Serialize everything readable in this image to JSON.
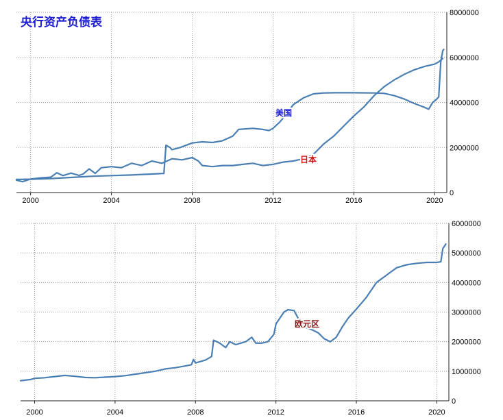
{
  "chart_data": [
    {
      "type": "line",
      "title": "央行资产负债表",
      "xlim": [
        1999.3,
        2020.6
      ],
      "ylim": [
        0,
        8000000
      ],
      "x_ticks": [
        "2000",
        "2004",
        "2008",
        "2012",
        "2016",
        "2020"
      ],
      "y_ticks": [
        "0",
        "2000000",
        "4000000",
        "6000000",
        "8000000"
      ],
      "series": [
        {
          "name": "美国",
          "label_color": "#1c1cd2",
          "points": [
            [
              1999.3,
              580000
            ],
            [
              2000.0,
              590000
            ],
            [
              2001.0,
              620000
            ],
            [
              2002.0,
              670000
            ],
            [
              2003.0,
              720000
            ],
            [
              2004.0,
              750000
            ],
            [
              2005.0,
              780000
            ],
            [
              2006.0,
              820000
            ],
            [
              2006.6,
              850000
            ],
            [
              2006.7,
              2100000
            ],
            [
              2006.9,
              2000000
            ],
            [
              2007.0,
              1900000
            ],
            [
              2007.4,
              2000000
            ],
            [
              2008.0,
              2200000
            ],
            [
              2008.5,
              2250000
            ],
            [
              2009.0,
              2220000
            ],
            [
              2009.5,
              2300000
            ],
            [
              2010.0,
              2500000
            ],
            [
              2010.3,
              2800000
            ],
            [
              2011.0,
              2850000
            ],
            [
              2011.5,
              2800000
            ],
            [
              2011.8,
              2750000
            ],
            [
              2012.0,
              2850000
            ],
            [
              2012.3,
              3100000
            ],
            [
              2012.6,
              3400000
            ],
            [
              2013.0,
              3900000
            ],
            [
              2013.5,
              4200000
            ],
            [
              2014.0,
              4380000
            ],
            [
              2014.5,
              4420000
            ],
            [
              2015.0,
              4430000
            ],
            [
              2016.0,
              4430000
            ],
            [
              2017.0,
              4420000
            ],
            [
              2017.5,
              4400000
            ],
            [
              2018.0,
              4300000
            ],
            [
              2018.5,
              4150000
            ],
            [
              2019.0,
              3950000
            ],
            [
              2019.5,
              3780000
            ],
            [
              2019.7,
              3700000
            ],
            [
              2019.9,
              4000000
            ],
            [
              2020.1,
              4150000
            ],
            [
              2020.2,
              4250000
            ],
            [
              2020.3,
              5800000
            ],
            [
              2020.4,
              6300000
            ],
            [
              2020.45,
              6350000
            ]
          ]
        },
        {
          "name": "日本",
          "label_color": "#cc1111",
          "points": [
            [
              1999.3,
              550000
            ],
            [
              1999.6,
              480000
            ],
            [
              2000.0,
              600000
            ],
            [
              2000.5,
              650000
            ],
            [
              2001.0,
              680000
            ],
            [
              2001.3,
              880000
            ],
            [
              2001.6,
              750000
            ],
            [
              2002.0,
              860000
            ],
            [
              2002.4,
              760000
            ],
            [
              2002.6,
              820000
            ],
            [
              2002.9,
              1050000
            ],
            [
              2003.2,
              850000
            ],
            [
              2003.5,
              1100000
            ],
            [
              2004.0,
              1150000
            ],
            [
              2004.5,
              1100000
            ],
            [
              2005.0,
              1300000
            ],
            [
              2005.5,
              1200000
            ],
            [
              2006.0,
              1400000
            ],
            [
              2006.5,
              1300000
            ],
            [
              2007.0,
              1500000
            ],
            [
              2007.5,
              1450000
            ],
            [
              2008.0,
              1550000
            ],
            [
              2008.3,
              1400000
            ],
            [
              2008.5,
              1200000
            ],
            [
              2009.0,
              1150000
            ],
            [
              2009.5,
              1200000
            ],
            [
              2010.0,
              1200000
            ],
            [
              2010.5,
              1250000
            ],
            [
              2011.0,
              1300000
            ],
            [
              2011.5,
              1200000
            ],
            [
              2012.0,
              1250000
            ],
            [
              2012.5,
              1350000
            ],
            [
              2013.0,
              1400000
            ],
            [
              2013.5,
              1500000
            ],
            [
              2014.0,
              1700000
            ],
            [
              2014.5,
              2150000
            ],
            [
              2015.0,
              2500000
            ],
            [
              2015.5,
              2950000
            ],
            [
              2016.0,
              3400000
            ],
            [
              2016.5,
              3800000
            ],
            [
              2017.0,
              4300000
            ],
            [
              2017.5,
              4700000
            ],
            [
              2018.0,
              5000000
            ],
            [
              2018.5,
              5250000
            ],
            [
              2019.0,
              5450000
            ],
            [
              2019.5,
              5600000
            ],
            [
              2020.0,
              5700000
            ],
            [
              2020.2,
              5800000
            ],
            [
              2020.4,
              5950000
            ]
          ]
        }
      ]
    },
    {
      "type": "line",
      "title": "",
      "xlim": [
        1999.3,
        2020.6
      ],
      "ylim": [
        0,
        6000000
      ],
      "x_ticks": [
        "2000",
        "2004",
        "2008",
        "2012",
        "2016",
        "2020"
      ],
      "y_ticks": [
        "0",
        "1000000",
        "2000000",
        "3000000",
        "4000000",
        "5000000",
        "6000000"
      ],
      "series": [
        {
          "name": "欧元区",
          "label_color": "#8b1414",
          "points": [
            [
              1999.3,
              680000
            ],
            [
              1999.8,
              720000
            ],
            [
              2000.0,
              760000
            ],
            [
              2000.5,
              780000
            ],
            [
              2001.0,
              820000
            ],
            [
              2001.5,
              860000
            ],
            [
              2002.0,
              830000
            ],
            [
              2002.5,
              790000
            ],
            [
              2003.0,
              780000
            ],
            [
              2003.5,
              800000
            ],
            [
              2004.0,
              820000
            ],
            [
              2004.5,
              850000
            ],
            [
              2005.0,
              900000
            ],
            [
              2005.5,
              950000
            ],
            [
              2006.0,
              1000000
            ],
            [
              2006.5,
              1080000
            ],
            [
              2007.0,
              1120000
            ],
            [
              2007.5,
              1180000
            ],
            [
              2007.8,
              1220000
            ],
            [
              2007.9,
              1400000
            ],
            [
              2008.0,
              1280000
            ],
            [
              2008.5,
              1380000
            ],
            [
              2008.8,
              1500000
            ],
            [
              2008.9,
              2050000
            ],
            [
              2009.2,
              1950000
            ],
            [
              2009.5,
              1800000
            ],
            [
              2009.7,
              2000000
            ],
            [
              2010.0,
              1900000
            ],
            [
              2010.5,
              2000000
            ],
            [
              2010.8,
              2150000
            ],
            [
              2011.0,
              1950000
            ],
            [
              2011.3,
              1950000
            ],
            [
              2011.6,
              2000000
            ],
            [
              2011.9,
              2250000
            ],
            [
              2012.0,
              2600000
            ],
            [
              2012.2,
              2800000
            ],
            [
              2012.4,
              3000000
            ],
            [
              2012.6,
              3080000
            ],
            [
              2012.9,
              3050000
            ],
            [
              2013.1,
              2800000
            ],
            [
              2013.4,
              2500000
            ],
            [
              2013.8,
              2400000
            ],
            [
              2014.1,
              2300000
            ],
            [
              2014.4,
              2100000
            ],
            [
              2014.7,
              2000000
            ],
            [
              2015.0,
              2150000
            ],
            [
              2015.3,
              2500000
            ],
            [
              2015.6,
              2800000
            ],
            [
              2016.0,
              3100000
            ],
            [
              2016.5,
              3500000
            ],
            [
              2017.0,
              4000000
            ],
            [
              2017.3,
              4150000
            ],
            [
              2017.7,
              4350000
            ],
            [
              2018.0,
              4500000
            ],
            [
              2018.5,
              4600000
            ],
            [
              2019.0,
              4650000
            ],
            [
              2019.5,
              4680000
            ],
            [
              2020.0,
              4680000
            ],
            [
              2020.2,
              4700000
            ],
            [
              2020.3,
              5150000
            ],
            [
              2020.45,
              5300000
            ]
          ]
        }
      ]
    }
  ]
}
